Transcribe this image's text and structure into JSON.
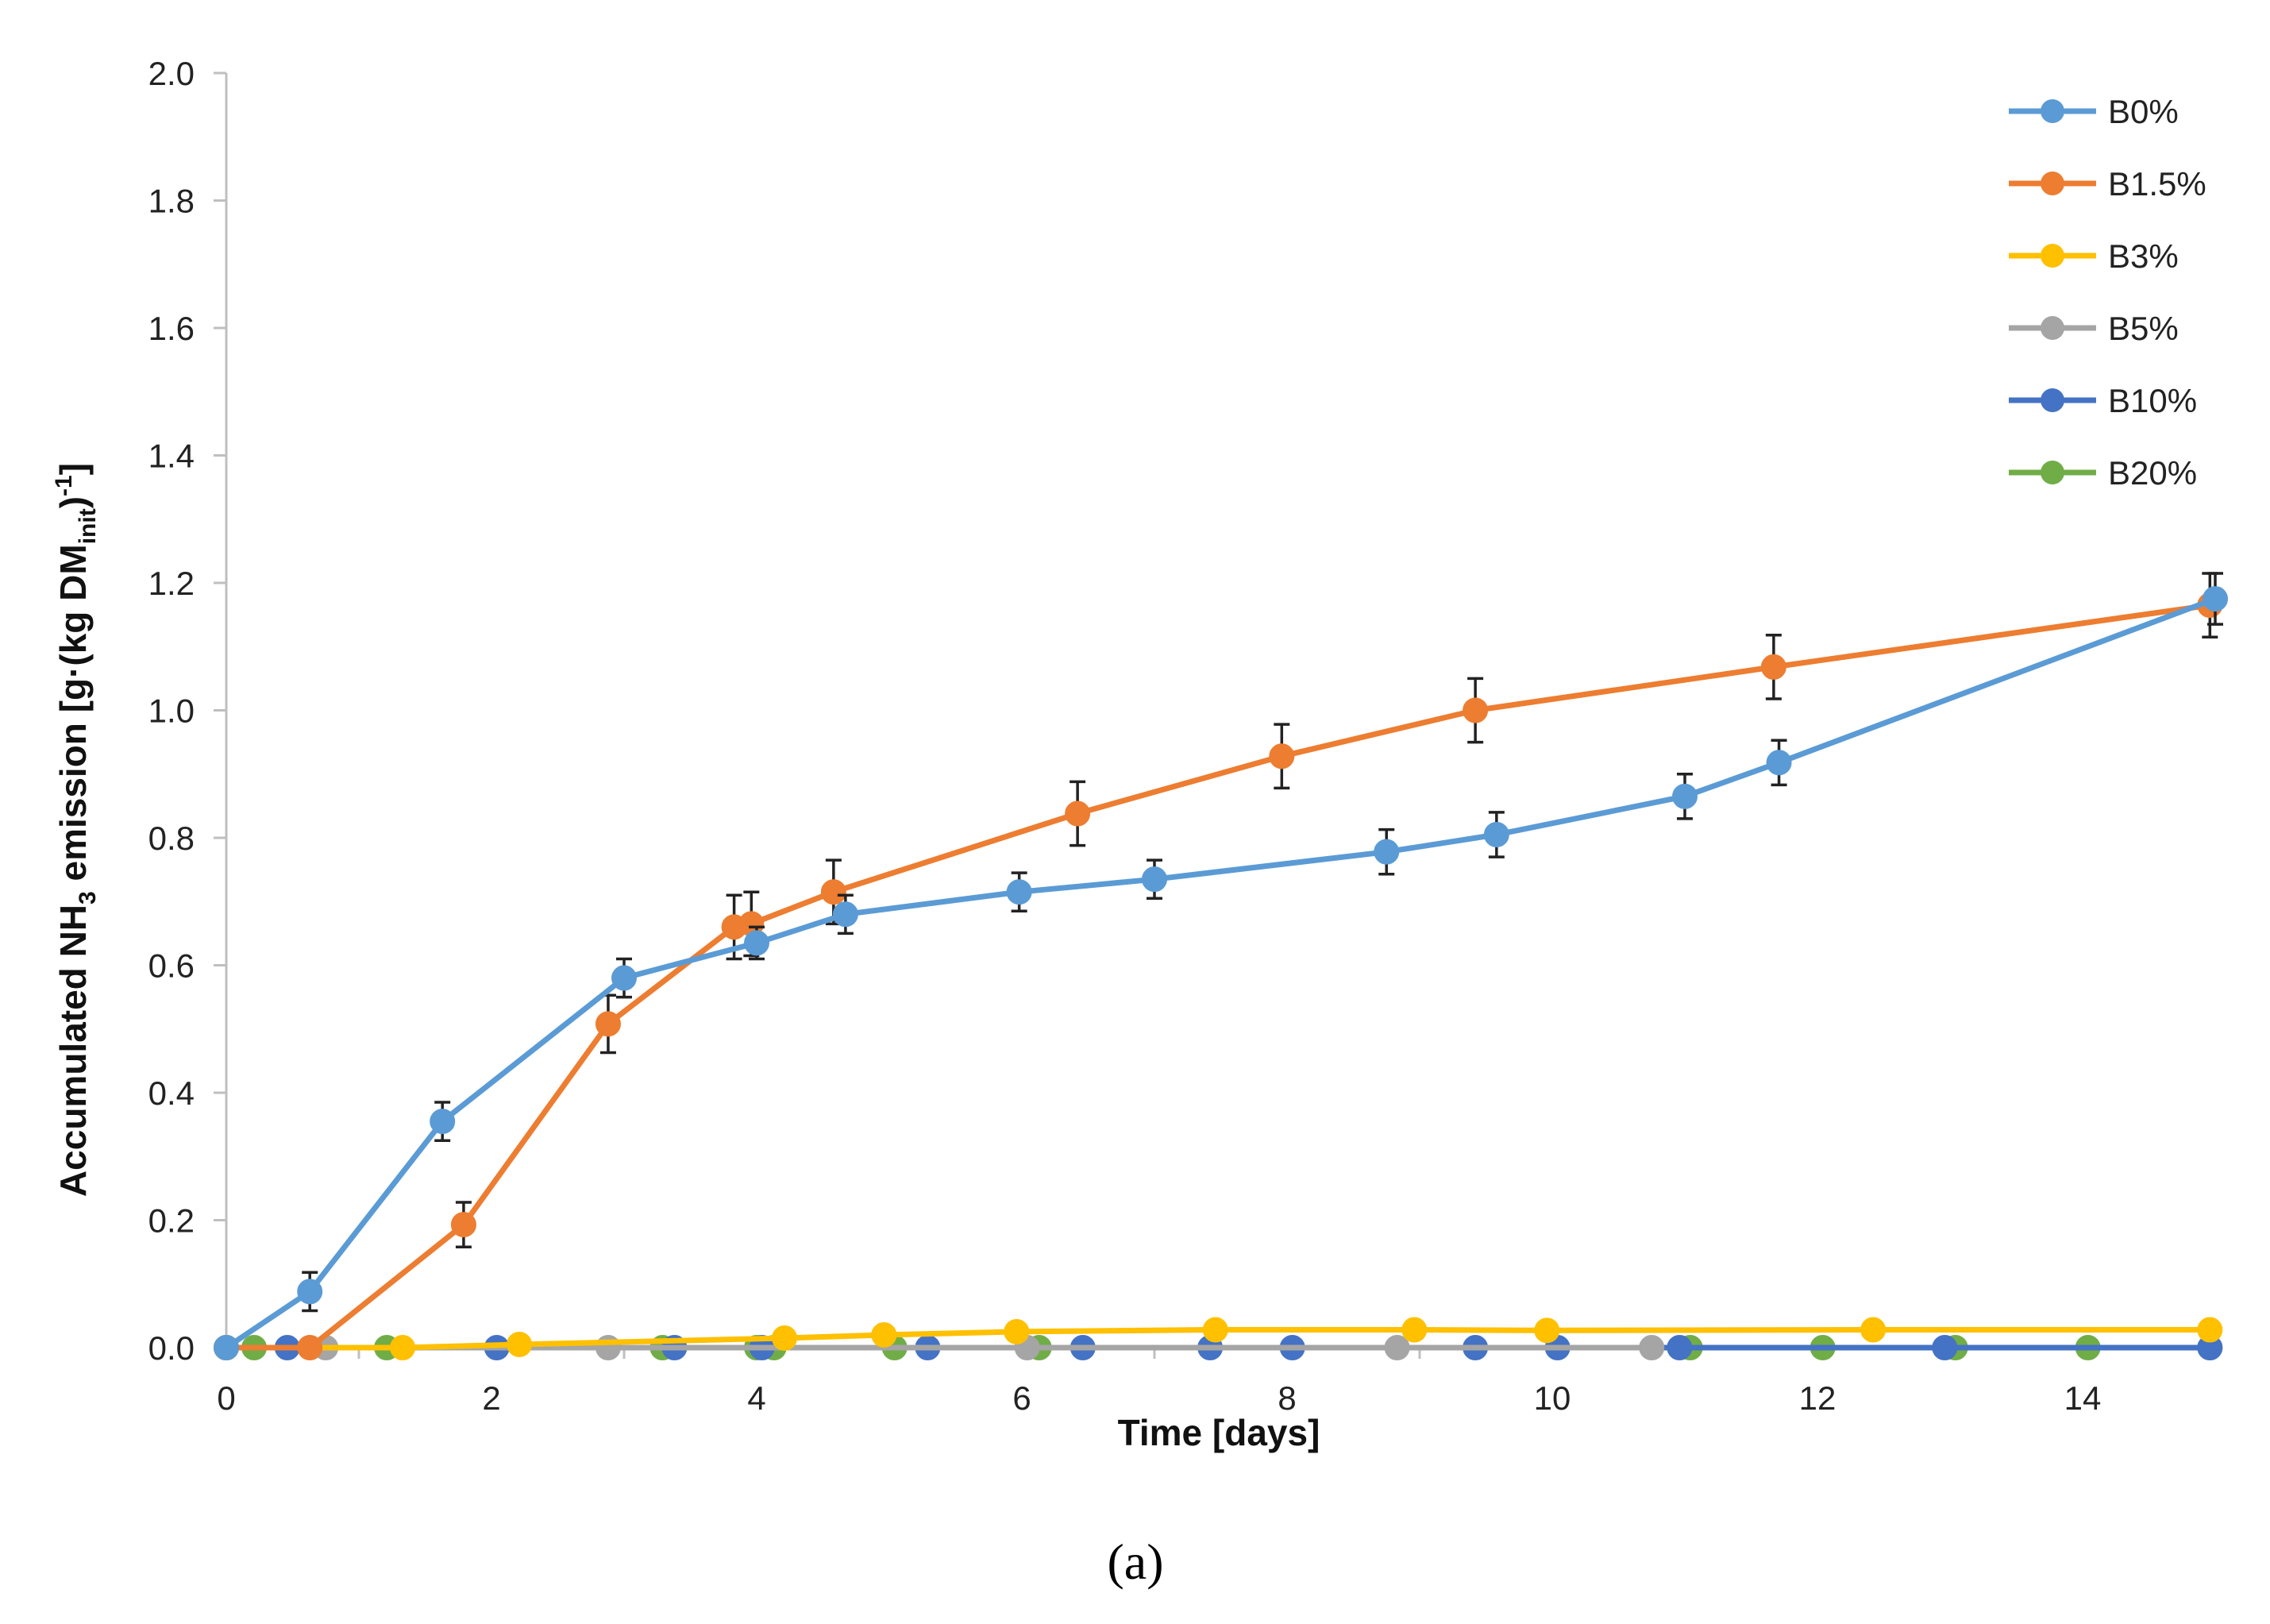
{
  "chart_data": {
    "type": "line",
    "title": "",
    "xlabel": "Time [days]",
    "ylabel_parts": {
      "a": "Accumulated NH",
      "b": "3",
      "c": " emission [g·(kg DM",
      "d": "init",
      "e": ")",
      "f": "-1",
      "g": "]"
    },
    "xlim": [
      0,
      15
    ],
    "ylim": [
      0,
      2.0
    ],
    "xticks": [
      0,
      2,
      4,
      6,
      8,
      10,
      12,
      14
    ],
    "yticks": [
      0.0,
      0.2,
      0.4,
      0.6,
      0.8,
      1.0,
      1.2,
      1.4,
      1.6,
      1.8,
      2.0
    ],
    "ytick_labels": [
      "0.0",
      "0.2",
      "0.4",
      "0.6",
      "0.8",
      "1.0",
      "1.2",
      "1.4",
      "1.6",
      "1.8",
      "2.0"
    ],
    "xtick_labels": [
      "0",
      "2",
      "4",
      "6",
      "8",
      "10",
      "12",
      "14"
    ],
    "panel_label": "(a)",
    "legend_position": "top-right",
    "series": [
      {
        "name": "B0%",
        "color": "#5B9BD5",
        "x": [
          0,
          0.63,
          1.63,
          3.0,
          4.0,
          4.67,
          5.98,
          7.0,
          8.75,
          9.58,
          11.0,
          11.71,
          15.0
        ],
        "y": [
          0,
          0.088,
          0.355,
          0.58,
          0.635,
          0.68,
          0.715,
          0.735,
          0.778,
          0.805,
          0.865,
          0.918,
          1.175
        ],
        "err": [
          0.01,
          0.03,
          0.03,
          0.03,
          0.025,
          0.03,
          0.03,
          0.03,
          0.035,
          0.035,
          0.035,
          0.035,
          0.04
        ]
      },
      {
        "name": "B1.5%",
        "color": "#ED7D31",
        "x": [
          0,
          0.63,
          1.79,
          2.88,
          3.83,
          3.96,
          4.58,
          6.42,
          7.96,
          9.42,
          11.67,
          14.96
        ],
        "y": [
          0,
          0,
          0.193,
          0.508,
          0.66,
          0.665,
          0.715,
          0.838,
          0.928,
          1.0,
          1.068,
          1.165
        ],
        "err": [
          0.005,
          0.005,
          0.035,
          0.045,
          0.05,
          0.05,
          0.05,
          0.05,
          0.05,
          0.05,
          0.05,
          0.05
        ]
      },
      {
        "name": "B3%",
        "color": "#FFC000",
        "x": [
          0,
          1.33,
          2.21,
          4.21,
          4.96,
          5.96,
          7.46,
          8.96,
          9.96,
          12.42,
          14.96
        ],
        "y": [
          0,
          0,
          0.005,
          0.015,
          0.02,
          0.025,
          0.028,
          0.028,
          0.027,
          0.028,
          0.028
        ],
        "err": []
      },
      {
        "name": "B5%",
        "color": "#A5A5A5",
        "x": [
          0,
          0.75,
          2.88,
          6.04,
          8.83,
          10.75
        ],
        "y": [
          0,
          0,
          0,
          0,
          0,
          0
        ],
        "err": []
      },
      {
        "name": "B10%",
        "color": "#4472C4",
        "x": [
          0,
          0.46,
          2.04,
          3.38,
          4.04,
          5.29,
          6.46,
          7.42,
          8.04,
          9.42,
          10.04,
          10.96,
          12.96,
          14.96
        ],
        "y": [
          0,
          0,
          0,
          0,
          0,
          0,
          0,
          0,
          0,
          0,
          0,
          0,
          0,
          0
        ],
        "err": []
      },
      {
        "name": "B20%",
        "color": "#70AD47",
        "x": [
          0,
          0.21,
          1.21,
          3.29,
          4.0,
          4.13,
          5.04,
          6.13,
          11.04,
          12.04,
          13.04,
          14.04,
          14.96
        ],
        "y": [
          0,
          0,
          0,
          0,
          0,
          0,
          0,
          0,
          0,
          0,
          0,
          0,
          0
        ],
        "err": []
      }
    ]
  }
}
